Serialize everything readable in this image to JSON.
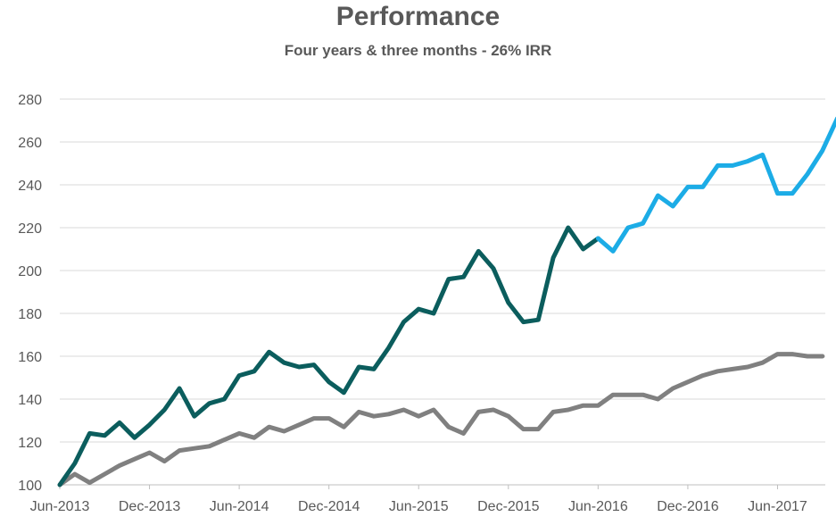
{
  "chart_data": {
    "type": "line",
    "title": "Performance",
    "subtitle": "Four years & three months - 26% IRR",
    "xlabel": "",
    "ylabel": "",
    "ylim": [
      100,
      280
    ],
    "yticks": [
      100,
      120,
      140,
      160,
      180,
      200,
      220,
      240,
      260,
      280
    ],
    "xtick_labels": [
      "Jun-2013",
      "Dec-2013",
      "Jun-2014",
      "Dec-2014",
      "Jun-2015",
      "Dec-2015",
      "Jun-2016",
      "Dec-2016",
      "Jun-2017"
    ],
    "x_start": "Jun-2013",
    "x_end": "Sep-2017",
    "grid": true,
    "legend": "none",
    "series": [
      {
        "color": "#0b5d5d",
        "start": "Jun-2013",
        "values": [
          100,
          110,
          124,
          123,
          129,
          122,
          128,
          135,
          145,
          132,
          138,
          140,
          151,
          153,
          162,
          157,
          155,
          156,
          148,
          143,
          155,
          154,
          164,
          176,
          182,
          180,
          196,
          197,
          209,
          201,
          185,
          176,
          177,
          206,
          220,
          210,
          215
        ]
      },
      {
        "color": "#1cace6",
        "start": "Jun-2016",
        "values": [
          215,
          209,
          220,
          222,
          235,
          230,
          239,
          239,
          249,
          249,
          251,
          254,
          236,
          236,
          245,
          256,
          271
        ]
      },
      {
        "color": "#808080",
        "start": "Jun-2013",
        "values": [
          100,
          105,
          101,
          105,
          109,
          112,
          115,
          111,
          116,
          117,
          118,
          121,
          124,
          122,
          127,
          125,
          128,
          131,
          131,
          127,
          134,
          132,
          133,
          135,
          132,
          135,
          127,
          124,
          134,
          135,
          132,
          126,
          126,
          134,
          135,
          137,
          137,
          142,
          142,
          142,
          140,
          145,
          148,
          151,
          153,
          154,
          155,
          157,
          161,
          161,
          160,
          160
        ]
      }
    ]
  },
  "colors": {
    "gridline": "#d9d9d9",
    "axis": "#bfbfbf",
    "text": "#595959"
  }
}
